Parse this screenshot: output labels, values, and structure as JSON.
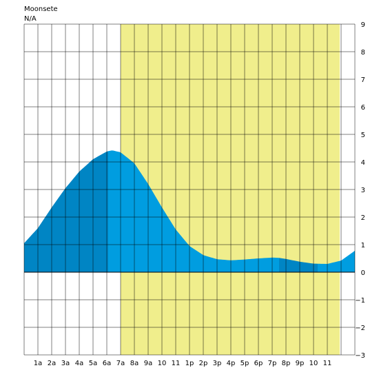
{
  "header": {
    "line1": "Moonsete",
    "line2": "N/A"
  },
  "chart_data": {
    "type": "area",
    "title": "",
    "xlabel": "",
    "ylabel": "",
    "xlim": [
      0,
      24
    ],
    "ylim": [
      -3,
      9
    ],
    "grid": true,
    "x_tick_labels": [
      "1a",
      "2a",
      "3a",
      "4a",
      "5a",
      "6a",
      "7a",
      "8a",
      "9a",
      "10",
      "11",
      "1p",
      "2p",
      "3p",
      "4p",
      "5p",
      "6p",
      "7p",
      "8p",
      "9p",
      "10",
      "11"
    ],
    "y_ticks": [
      9,
      8,
      7,
      6,
      5,
      4,
      3,
      2,
      1,
      0,
      -1,
      -2,
      -3
    ],
    "daylight": [
      7.0,
      22.9
    ],
    "shading_segments": [
      {
        "from": 0,
        "to": 6.1,
        "color": "#0085c4"
      },
      {
        "from": 6.1,
        "to": 18.5,
        "color": "#009de0"
      },
      {
        "from": 18.5,
        "to": 21.3,
        "color": "#0085c4"
      },
      {
        "from": 21.3,
        "to": 24,
        "color": "#009de0"
      }
    ],
    "series": [
      {
        "x": [
          0,
          1,
          2,
          3,
          4,
          5,
          6,
          6.4,
          7,
          8,
          9,
          10,
          11,
          12,
          13,
          14,
          15,
          16,
          17,
          18,
          18.5,
          19,
          20,
          21,
          22,
          23,
          24
        ],
        "values": [
          1.05,
          1.6,
          2.35,
          3.05,
          3.65,
          4.1,
          4.38,
          4.42,
          4.35,
          3.95,
          3.2,
          2.35,
          1.55,
          0.95,
          0.62,
          0.47,
          0.43,
          0.46,
          0.5,
          0.53,
          0.52,
          0.48,
          0.38,
          0.31,
          0.3,
          0.42,
          0.78
        ]
      }
    ],
    "colors": {
      "daylight": "#f0ee8c",
      "grid": "#000000",
      "background": "#ffffff"
    }
  }
}
